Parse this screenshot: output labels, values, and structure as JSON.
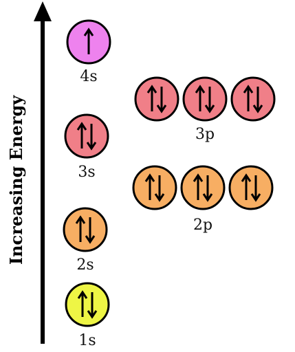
{
  "axis": {
    "title": "Increasing Energy"
  },
  "colors": {
    "s4": "#ee82ee",
    "s3": "#f07f88",
    "p3": "#f07f88",
    "s2": "#f7ae63",
    "p2": "#f7ae63",
    "s1": "#eef545"
  },
  "orbitals": {
    "s4": {
      "label": "4s",
      "boxes": [
        "up"
      ]
    },
    "s3": {
      "label": "3s",
      "boxes": [
        "up-down"
      ]
    },
    "p3": {
      "label": "3p",
      "boxes": [
        "up-down",
        "up-down",
        "up-down"
      ]
    },
    "s2": {
      "label": "2s",
      "boxes": [
        "up-down"
      ]
    },
    "p2": {
      "label": "2p",
      "boxes": [
        "up-down",
        "up-down",
        "up-down"
      ]
    },
    "s1": {
      "label": "1s",
      "boxes": [
        "up-down"
      ]
    }
  }
}
